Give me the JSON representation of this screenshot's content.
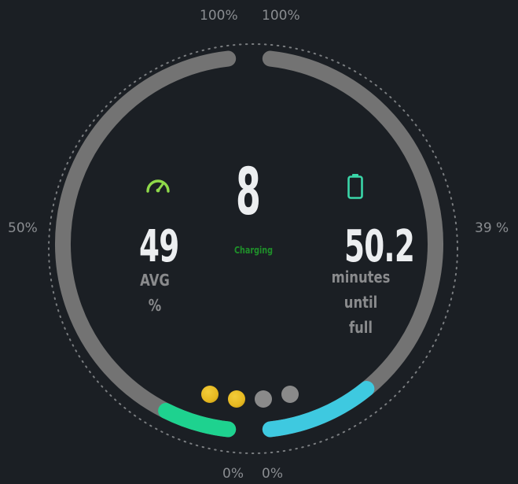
{
  "gauge": {
    "top_left_label": "100%",
    "top_right_label": "100%",
    "left_label": "50%",
    "right_label": "39 %",
    "bottom_left_label": "0%",
    "bottom_right_label": "0%",
    "left_arc_fill_percent": 50,
    "right_arc_fill_percent": 39,
    "left_arc_color": "#1ed28f",
    "right_arc_color": "#3ec9e0",
    "track_color": "#737373"
  },
  "center": {
    "value": "8",
    "status": "Charging",
    "status_color": "#1f8f2a"
  },
  "left_stat": {
    "icon": "speedometer-icon",
    "icon_color": "#8fd94a",
    "value": "49",
    "label_line1": "AVG",
    "label_line2": "%"
  },
  "right_stat": {
    "icon": "battery-icon",
    "icon_color": "#3ad6a8",
    "value": "50.2",
    "label_line1": "minutes",
    "label_line2": "until",
    "label_line3": "full"
  },
  "indicators": {
    "colors": [
      "#e6b820",
      "#e6b820",
      "#8a8a8a",
      "#8a8a8a"
    ]
  }
}
